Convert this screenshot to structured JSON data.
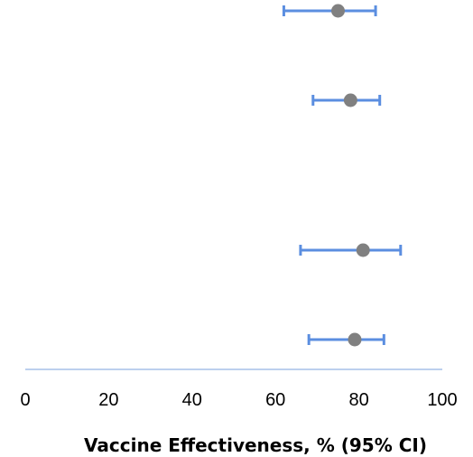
{
  "chart_data": {
    "type": "forest",
    "title": "",
    "xlabel": "Vaccine Effectiveness, % (95% CI)",
    "ylabel": "",
    "xlim": [
      0,
      100
    ],
    "xticks": [
      "0",
      "20",
      "40",
      "60",
      "80",
      "100"
    ],
    "grid": false,
    "legend": "none",
    "points": [
      {
        "estimate": 75,
        "ci_low": 62,
        "ci_high": 84
      },
      {
        "estimate": 78,
        "ci_low": 69,
        "ci_high": 85
      },
      {
        "estimate": 81,
        "ci_low": 66,
        "ci_high": 90
      },
      {
        "estimate": 79,
        "ci_low": 68,
        "ci_high": 86
      }
    ],
    "colors": {
      "point": "#808080",
      "error_bar": "#5b8ee0",
      "axis": "#bcd0ee"
    }
  }
}
